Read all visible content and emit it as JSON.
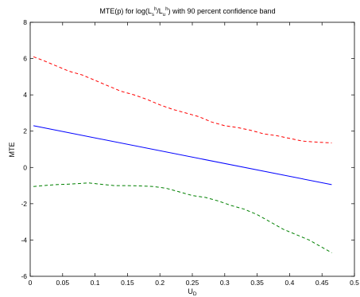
{
  "chart_data": {
    "type": "line",
    "title": {
      "prefix": "MTE(p) for log(L",
      "sub1": "s",
      "sup1": "h",
      "mid": "/L",
      "sub2": "u",
      "sup2": "h",
      "suffix": ")  with 90 percent confidence band"
    },
    "xlabel": {
      "main": "U",
      "sub": "D"
    },
    "ylabel": "MTE",
    "xlim": [
      0,
      0.5
    ],
    "ylim": [
      -6,
      8
    ],
    "xticks": [
      "0",
      "0.05",
      "0.1",
      "0.15",
      "0.2",
      "0.25",
      "0.3",
      "0.35",
      "0.4",
      "0.45",
      "0.5"
    ],
    "yticks": [
      "-6",
      "-4",
      "-2",
      "0",
      "2",
      "4",
      "6",
      "8"
    ],
    "grid": false,
    "series": [
      {
        "style": "solid",
        "color": "#0000ff",
        "x": [
          0.005,
          0.465
        ],
        "y": [
          2.3,
          -0.95
        ]
      },
      {
        "style": "dashed",
        "color": "#ff0000",
        "x": [
          0.005,
          0.02,
          0.04,
          0.06,
          0.08,
          0.1,
          0.12,
          0.14,
          0.16,
          0.18,
          0.2,
          0.22,
          0.24,
          0.26,
          0.28,
          0.3,
          0.32,
          0.34,
          0.36,
          0.38,
          0.4,
          0.42,
          0.44,
          0.465
        ],
        "y": [
          6.1,
          5.9,
          5.6,
          5.3,
          5.1,
          4.8,
          4.5,
          4.2,
          4.0,
          3.75,
          3.45,
          3.2,
          3.0,
          2.8,
          2.5,
          2.3,
          2.2,
          2.05,
          1.85,
          1.75,
          1.6,
          1.45,
          1.4,
          1.35
        ]
      },
      {
        "style": "dashed",
        "color": "#008000",
        "x": [
          0.005,
          0.02,
          0.04,
          0.06,
          0.08,
          0.09,
          0.11,
          0.13,
          0.15,
          0.17,
          0.19,
          0.21,
          0.23,
          0.25,
          0.27,
          0.29,
          0.31,
          0.33,
          0.35,
          0.37,
          0.39,
          0.41,
          0.43,
          0.465
        ],
        "y": [
          -1.05,
          -1.0,
          -0.95,
          -0.92,
          -0.88,
          -0.85,
          -0.93,
          -1.0,
          -1.0,
          -1.02,
          -1.05,
          -1.15,
          -1.35,
          -1.55,
          -1.65,
          -1.85,
          -2.1,
          -2.3,
          -2.6,
          -3.0,
          -3.4,
          -3.7,
          -4.0,
          -4.7
        ]
      }
    ]
  }
}
